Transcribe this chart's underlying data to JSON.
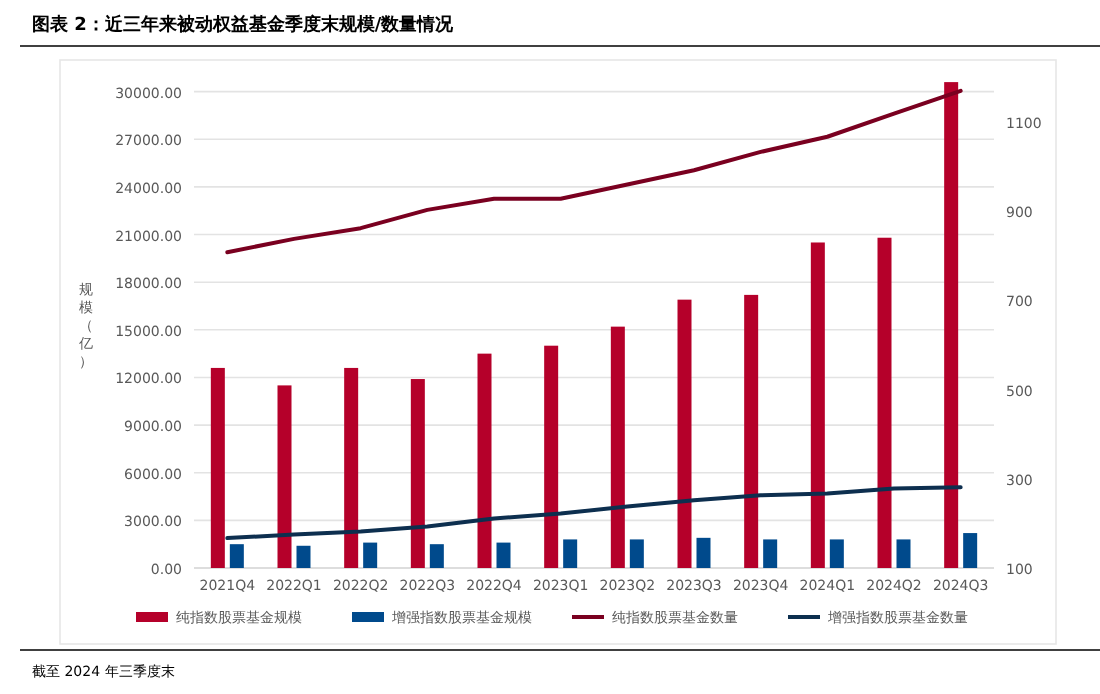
{
  "chart_data": {
    "type": "bar",
    "title": "图表 2：近三年来被动权益基金季度末规模/数量情况",
    "ylabel": "规模（亿）",
    "annotations": [
      "截至 2024 年三季度末"
    ],
    "categories": [
      "2021Q4",
      "2022Q1",
      "2022Q2",
      "2022Q3",
      "2022Q4",
      "2023Q1",
      "2023Q2",
      "2023Q3",
      "2023Q4",
      "2024Q1",
      "2024Q2",
      "2024Q3"
    ],
    "series": [
      {
        "name": "纯指数股票基金规模",
        "color": "#b5002a",
        "values": [
          12600,
          11500,
          12600,
          11900,
          13500,
          14000,
          15200,
          16900,
          17200,
          20500,
          20800,
          30600
        ]
      },
      {
        "name": "增强指数股票基金规模",
        "color": "#004a8c",
        "values": [
          1500,
          1400,
          1600,
          1500,
          1600,
          1800,
          1800,
          1900,
          1800,
          1800,
          1800,
          2200
        ]
      },
      {
        "name": "纯指数股票基金数量",
        "color": "#7a0020",
        "type": "line",
        "axis": "y2",
        "values": [
          808,
          838,
          862,
          903,
          928,
          928,
          960,
          992,
          1033,
          1067,
          1119,
          1170
        ]
      },
      {
        "name": "增强指数股票基金数量",
        "color": "#0d2f4f",
        "type": "line",
        "axis": "y2",
        "values": [
          167,
          175,
          182,
          193,
          211,
          222,
          238,
          252,
          263,
          267,
          278,
          281
        ]
      }
    ],
    "ylim": [
      0,
      33000
    ],
    "yticks": [
      {
        "value": 0,
        "label": "0.00"
      },
      {
        "value": 3000,
        "label": "3000.00"
      },
      {
        "value": 6000,
        "label": "6000.00"
      },
      {
        "value": 9000,
        "label": "9000.00"
      },
      {
        "value": 12000,
        "label": "12000.00"
      },
      {
        "value": 15000,
        "label": "15000.00"
      },
      {
        "value": 18000,
        "label": "18000.00"
      },
      {
        "value": 21000,
        "label": "21000.00"
      },
      {
        "value": 24000,
        "label": "24000.00"
      },
      {
        "value": 27000,
        "label": "27000.00"
      },
      {
        "value": 30000,
        "label": "30000.00"
      }
    ],
    "y2lim": [
      100,
      1275
    ],
    "y2ticks": [
      100,
      300,
      500,
      700,
      900,
      1100
    ],
    "grid": "y",
    "legend": "bottom"
  }
}
